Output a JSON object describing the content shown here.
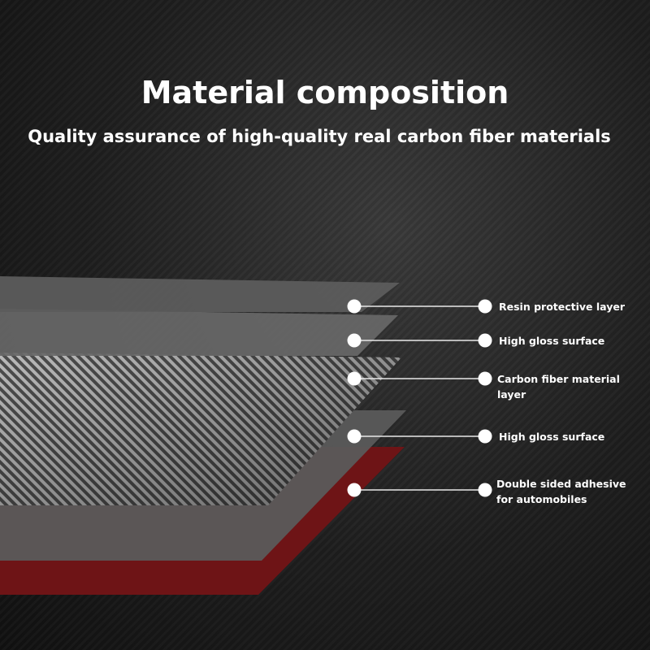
{
  "title": "Material composition",
  "subtitle": "Quality assurance of high-quality real carbon fiber materials",
  "layers": [
    {
      "label": "Resin protective layer"
    },
    {
      "label": "High gloss surface"
    },
    {
      "label": "Carbon fiber material layer"
    },
    {
      "label": "High gloss surface"
    },
    {
      "label": "Double sided adhesive for automobiles"
    }
  ],
  "colors": {
    "adhesive": "#6e1416",
    "gloss": "#5e5e5e",
    "background": "#1e1e1e",
    "callout": "#ffffff"
  }
}
